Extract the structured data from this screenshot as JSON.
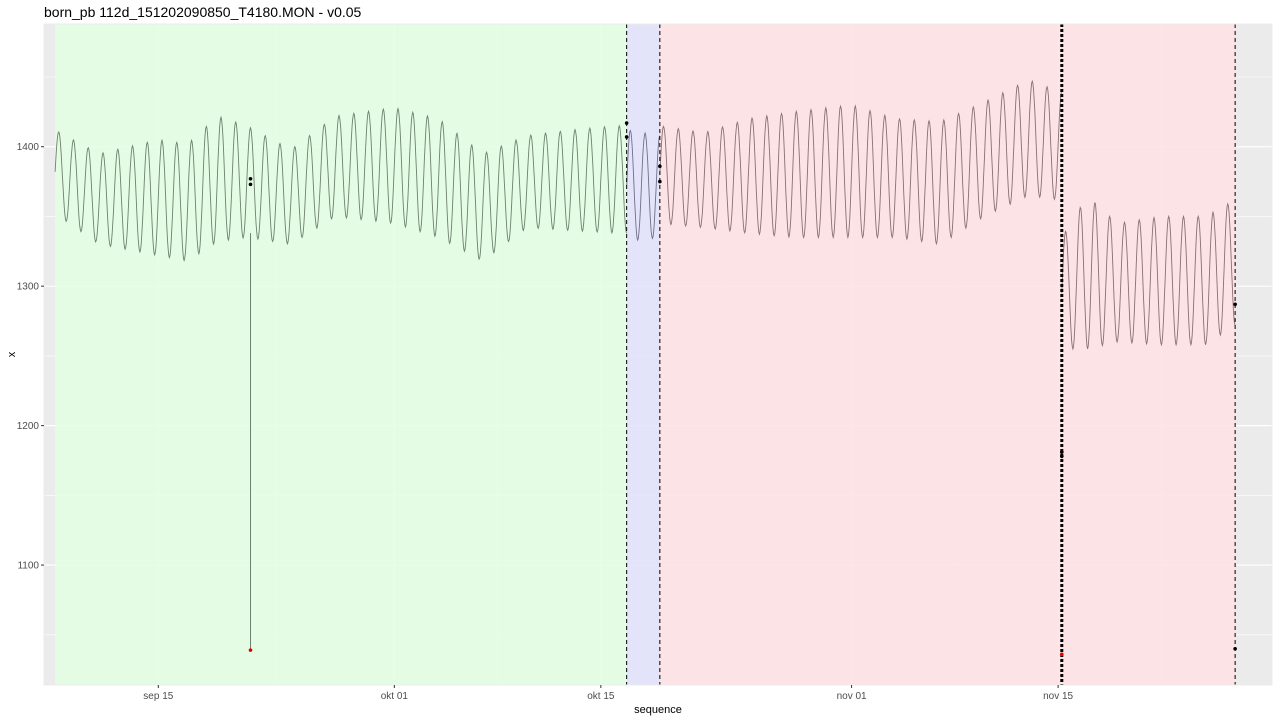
{
  "chart_data": {
    "type": "line",
    "title": "born_pb 112d_151202090850_T4180.MON - v0.05",
    "xlabel": "sequence",
    "ylabel": "x",
    "x_axis": "date",
    "xlim": [
      "2015-09-07T06:00",
      "2015-11-29T12:00"
    ],
    "ylim": [
      1014,
      1488
    ],
    "x_ticks": [
      {
        "date": "2015-09-15",
        "label": "sep 15"
      },
      {
        "date": "2015-10-01",
        "label": "okt 01"
      },
      {
        "date": "2015-10-15",
        "label": "okt 15"
      },
      {
        "date": "2015-11-01",
        "label": "nov 01"
      },
      {
        "date": "2015-11-15",
        "label": "nov 15"
      }
    ],
    "y_ticks": [
      1100,
      1200,
      1300,
      1400
    ],
    "grid": true,
    "background": "#ebebeb",
    "regions": [
      {
        "start": "2015-09-08T00:00",
        "end": "2015-10-16T18:00",
        "color": "#e0ffe0"
      },
      {
        "start": "2015-10-16T18:00",
        "end": "2015-10-19T00:00",
        "color": "#e0e0fd"
      },
      {
        "start": "2015-10-19T00:00",
        "end": "2015-11-27T00:00",
        "color": "#ffe0e3"
      }
    ],
    "change_lines": [
      {
        "date": "2015-10-16T18:00",
        "style": "dashed"
      },
      {
        "date": "2015-10-19T00:00",
        "style": "dashed"
      },
      {
        "date": "2015-11-15T06:00",
        "style": "dotted-bold"
      },
      {
        "date": "2015-11-27T00:00",
        "style": "dashed"
      }
    ],
    "series": [
      {
        "segment_start": "2015-09-08T00:00",
        "segment_end": "2015-10-16T18:00",
        "cycle_per_day": 1,
        "color": "#6f7f6f",
        "envelope": [
          {
            "date": "2015-09-08",
            "high": 1412,
            "low": 1352
          },
          {
            "date": "2015-09-11",
            "high": 1395,
            "low": 1330
          },
          {
            "date": "2015-09-15",
            "high": 1405,
            "low": 1322
          },
          {
            "date": "2015-09-17",
            "high": 1402,
            "low": 1318
          },
          {
            "date": "2015-09-19",
            "high": 1422,
            "low": 1332
          },
          {
            "date": "2015-09-21",
            "high": 1415,
            "low": 1335
          },
          {
            "date": "2015-09-24",
            "high": 1398,
            "low": 1330
          },
          {
            "date": "2015-09-27",
            "high": 1422,
            "low": 1350
          },
          {
            "date": "2015-10-01",
            "high": 1428,
            "low": 1345
          },
          {
            "date": "2015-10-04",
            "high": 1420,
            "low": 1335
          },
          {
            "date": "2015-10-07",
            "high": 1395,
            "low": 1318
          },
          {
            "date": "2015-10-10",
            "high": 1408,
            "low": 1342
          },
          {
            "date": "2015-10-13",
            "high": 1412,
            "low": 1340
          },
          {
            "date": "2015-10-16",
            "high": 1415,
            "low": 1338
          }
        ]
      },
      {
        "segment_start": "2015-10-16T18:00",
        "segment_end": "2015-10-19T00:00",
        "cycle_per_day": 1,
        "color": "#6f6f8a",
        "envelope": [
          {
            "date": "2015-10-16T18:00",
            "high": 1412,
            "low": 1332
          },
          {
            "date": "2015-10-19",
            "high": 1408,
            "low": 1335
          }
        ]
      },
      {
        "segment_start": "2015-10-19T00:00",
        "segment_end": "2015-11-15T06:00",
        "cycle_per_day": 1,
        "color": "#8a6f73",
        "envelope": [
          {
            "date": "2015-10-19",
            "high": 1415,
            "low": 1345
          },
          {
            "date": "2015-10-22",
            "high": 1410,
            "low": 1342
          },
          {
            "date": "2015-10-25",
            "high": 1420,
            "low": 1338
          },
          {
            "date": "2015-10-28",
            "high": 1425,
            "low": 1335
          },
          {
            "date": "2015-11-01",
            "high": 1430,
            "low": 1335
          },
          {
            "date": "2015-11-04",
            "high": 1420,
            "low": 1335
          },
          {
            "date": "2015-11-07",
            "high": 1418,
            "low": 1330
          },
          {
            "date": "2015-11-10",
            "high": 1432,
            "low": 1350
          },
          {
            "date": "2015-11-13",
            "high": 1448,
            "low": 1365
          },
          {
            "date": "2015-11-15",
            "high": 1440,
            "low": 1362
          }
        ]
      },
      {
        "segment_start": "2015-11-15T06:00",
        "segment_end": "2015-11-27T00:00",
        "cycle_per_day": 1,
        "color": "#8a6f73",
        "envelope": [
          {
            "date": "2015-11-15T06:00",
            "high": 1335,
            "low": 1255
          },
          {
            "date": "2015-11-17",
            "high": 1365,
            "low": 1255
          },
          {
            "date": "2015-11-19",
            "high": 1345,
            "low": 1260
          },
          {
            "date": "2015-11-22",
            "high": 1350,
            "low": 1258
          },
          {
            "date": "2015-11-25",
            "high": 1350,
            "low": 1258
          },
          {
            "date": "2015-11-27",
            "high": 1362,
            "low": 1272
          }
        ]
      }
    ],
    "spike": {
      "date": "2015-09-21T06:00",
      "top": 1338,
      "bottom": 1039
    },
    "outlier_points": [
      {
        "date": "2015-09-21T06:00",
        "value": 1039,
        "color": "#e00000"
      },
      {
        "date": "2015-11-15T06:00",
        "value": 1036,
        "color": "#e00000"
      }
    ],
    "marker_points": [
      {
        "date": "2015-09-21T06:00",
        "value": 1377
      },
      {
        "date": "2015-09-21T06:00",
        "value": 1373
      },
      {
        "date": "2015-10-16T18:00",
        "value": 1417
      },
      {
        "date": "2015-10-16T18:00",
        "value": 1407
      },
      {
        "date": "2015-10-19T00:00",
        "value": 1386
      },
      {
        "date": "2015-10-19T00:00",
        "value": 1375
      },
      {
        "date": "2015-11-15T06:00",
        "value": 1181
      },
      {
        "date": "2015-11-15T06:00",
        "value": 1178
      },
      {
        "date": "2015-11-27T00:00",
        "value": 1287
      },
      {
        "date": "2015-11-27T00:00",
        "value": 1040
      }
    ]
  }
}
